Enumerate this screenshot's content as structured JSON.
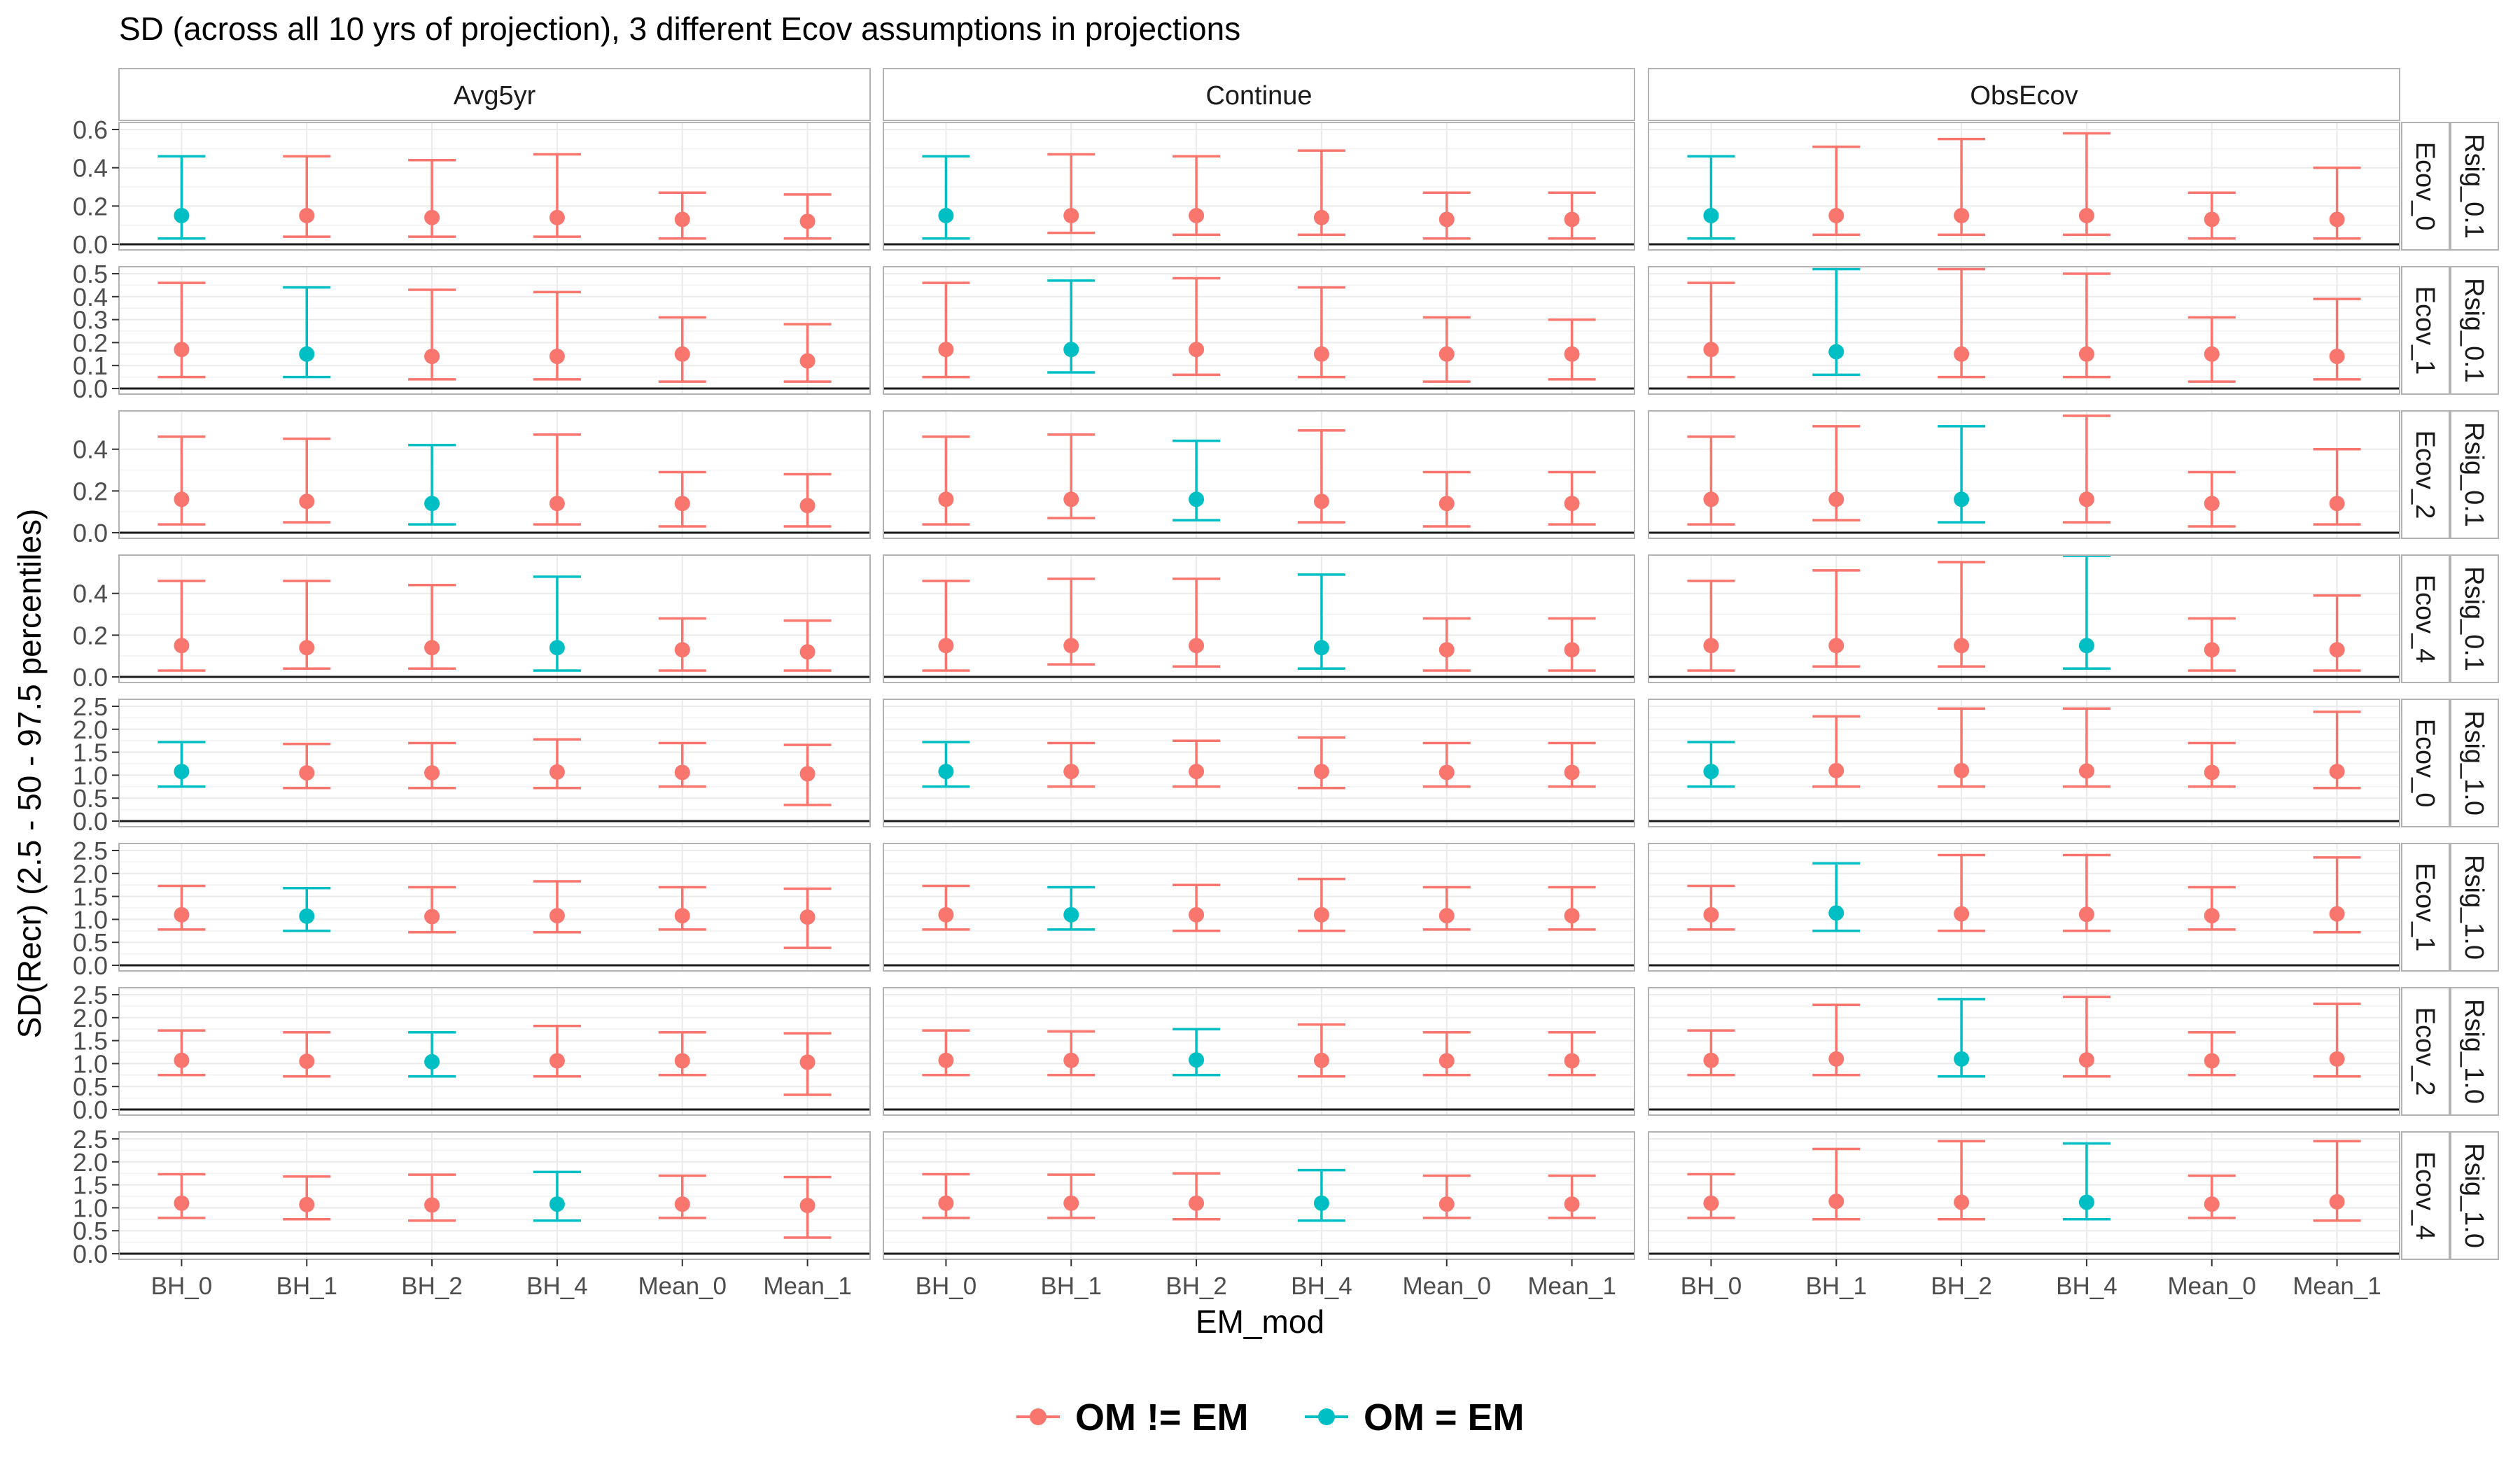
{
  "chart_data": {
    "type": "errorbar-facet",
    "title": "SD (across all 10 yrs of projection), 3 different Ecov assumptions in projections",
    "xlabel": "EM_mod",
    "ylabel": "SD(Recr) (2.5 - 50 - 97.5 percentiles)",
    "categories": [
      "BH_0",
      "BH_1",
      "BH_2",
      "BH_4",
      "Mean_0",
      "Mean_1"
    ],
    "columns": [
      "Avg5yr",
      "Continue",
      "ObsEcov"
    ],
    "legend": {
      "position": "bottom",
      "items": [
        {
          "label": "OM != EM",
          "color": "#F8766D"
        },
        {
          "label": "OM = EM",
          "color": "#00BFC4"
        }
      ]
    },
    "rows": [
      {
        "ecov": "Ecov_0",
        "rsig": "Rsig_0.1",
        "ylim": [
          0,
          0.6
        ],
        "ticks": [
          "0.0",
          "0.2",
          "0.4",
          "0.6"
        ],
        "tick_values": [
          0,
          0.2,
          0.4,
          0.6
        ],
        "match": 0,
        "panels": [
          {
            "lo": [
              0.03,
              0.04,
              0.04,
              0.04,
              0.03,
              0.03
            ],
            "mid": [
              0.15,
              0.15,
              0.14,
              0.14,
              0.13,
              0.12
            ],
            "hi": [
              0.46,
              0.46,
              0.44,
              0.47,
              0.27,
              0.26
            ]
          },
          {
            "lo": [
              0.03,
              0.06,
              0.05,
              0.05,
              0.03,
              0.03
            ],
            "mid": [
              0.15,
              0.15,
              0.15,
              0.14,
              0.13,
              0.13
            ],
            "hi": [
              0.46,
              0.47,
              0.46,
              0.49,
              0.27,
              0.27
            ]
          },
          {
            "lo": [
              0.03,
              0.05,
              0.05,
              0.05,
              0.03,
              0.03
            ],
            "mid": [
              0.15,
              0.15,
              0.15,
              0.15,
              0.13,
              0.13
            ],
            "hi": [
              0.46,
              0.51,
              0.55,
              0.58,
              0.27,
              0.4
            ]
          }
        ]
      },
      {
        "ecov": "Ecov_1",
        "rsig": "Rsig_0.1",
        "ylim": [
          0,
          0.5
        ],
        "ticks": [
          "0.0",
          "0.1",
          "0.2",
          "0.3",
          "0.4",
          "0.5"
        ],
        "tick_values": [
          0,
          0.1,
          0.2,
          0.3,
          0.4,
          0.5
        ],
        "match": 1,
        "panels": [
          {
            "lo": [
              0.05,
              0.05,
              0.04,
              0.04,
              0.03,
              0.03
            ],
            "mid": [
              0.17,
              0.15,
              0.14,
              0.14,
              0.15,
              0.12
            ],
            "hi": [
              0.46,
              0.44,
              0.43,
              0.42,
              0.31,
              0.28
            ]
          },
          {
            "lo": [
              0.05,
              0.07,
              0.06,
              0.05,
              0.03,
              0.04
            ],
            "mid": [
              0.17,
              0.17,
              0.17,
              0.15,
              0.15,
              0.15
            ],
            "hi": [
              0.46,
              0.47,
              0.48,
              0.44,
              0.31,
              0.3
            ]
          },
          {
            "lo": [
              0.05,
              0.06,
              0.05,
              0.05,
              0.03,
              0.04
            ],
            "mid": [
              0.17,
              0.16,
              0.15,
              0.15,
              0.15,
              0.14
            ],
            "hi": [
              0.46,
              0.52,
              0.52,
              0.5,
              0.31,
              0.39
            ]
          }
        ]
      },
      {
        "ecov": "Ecov_2",
        "rsig": "Rsig_0.1",
        "ylim": [
          0,
          0.55
        ],
        "ticks": [
          "0.0",
          "0.2",
          "0.4"
        ],
        "tick_values": [
          0,
          0.2,
          0.4
        ],
        "match": 2,
        "panels": [
          {
            "lo": [
              0.04,
              0.05,
              0.04,
              0.04,
              0.03,
              0.03
            ],
            "mid": [
              0.16,
              0.15,
              0.14,
              0.14,
              0.14,
              0.13
            ],
            "hi": [
              0.46,
              0.45,
              0.42,
              0.47,
              0.29,
              0.28
            ]
          },
          {
            "lo": [
              0.04,
              0.07,
              0.06,
              0.05,
              0.03,
              0.04
            ],
            "mid": [
              0.16,
              0.16,
              0.16,
              0.15,
              0.14,
              0.14
            ],
            "hi": [
              0.46,
              0.47,
              0.44,
              0.49,
              0.29,
              0.29
            ]
          },
          {
            "lo": [
              0.04,
              0.06,
              0.05,
              0.05,
              0.03,
              0.04
            ],
            "mid": [
              0.16,
              0.16,
              0.16,
              0.16,
              0.14,
              0.14
            ],
            "hi": [
              0.46,
              0.51,
              0.51,
              0.56,
              0.29,
              0.4
            ]
          }
        ]
      },
      {
        "ecov": "Ecov_4",
        "rsig": "Rsig_0.1",
        "ylim": [
          0,
          0.55
        ],
        "ticks": [
          "0.0",
          "0.2",
          "0.4"
        ],
        "tick_values": [
          0,
          0.2,
          0.4
        ],
        "match": 3,
        "panels": [
          {
            "lo": [
              0.03,
              0.04,
              0.04,
              0.03,
              0.03,
              0.03
            ],
            "mid": [
              0.15,
              0.14,
              0.14,
              0.14,
              0.13,
              0.12
            ],
            "hi": [
              0.46,
              0.46,
              0.44,
              0.48,
              0.28,
              0.27
            ]
          },
          {
            "lo": [
              0.03,
              0.06,
              0.05,
              0.04,
              0.03,
              0.03
            ],
            "mid": [
              0.15,
              0.15,
              0.15,
              0.14,
              0.13,
              0.13
            ],
            "hi": [
              0.46,
              0.47,
              0.47,
              0.49,
              0.28,
              0.28
            ]
          },
          {
            "lo": [
              0.03,
              0.05,
              0.05,
              0.04,
              0.03,
              0.03
            ],
            "mid": [
              0.15,
              0.15,
              0.15,
              0.15,
              0.13,
              0.13
            ],
            "hi": [
              0.46,
              0.51,
              0.55,
              0.58,
              0.28,
              0.39
            ]
          }
        ]
      },
      {
        "ecov": "Ecov_0",
        "rsig": "Rsig_1.0",
        "ylim": [
          0,
          2.5
        ],
        "ticks": [
          "0.0",
          "0.5",
          "1.0",
          "1.5",
          "2.0",
          "2.5"
        ],
        "tick_values": [
          0,
          0.5,
          1.0,
          1.5,
          2.0,
          2.5
        ],
        "match": 0,
        "panels": [
          {
            "lo": [
              0.75,
              0.72,
              0.72,
              0.72,
              0.75,
              0.35
            ],
            "mid": [
              1.08,
              1.05,
              1.05,
              1.07,
              1.06,
              1.03
            ],
            "hi": [
              1.72,
              1.68,
              1.7,
              1.78,
              1.7,
              1.66
            ]
          },
          {
            "lo": [
              0.75,
              0.75,
              0.75,
              0.72,
              0.75,
              0.75
            ],
            "mid": [
              1.08,
              1.08,
              1.08,
              1.08,
              1.06,
              1.06
            ],
            "hi": [
              1.72,
              1.7,
              1.75,
              1.82,
              1.7,
              1.7
            ]
          },
          {
            "lo": [
              0.75,
              0.75,
              0.75,
              0.75,
              0.75,
              0.72
            ],
            "mid": [
              1.08,
              1.1,
              1.1,
              1.09,
              1.06,
              1.08
            ],
            "hi": [
              1.72,
              2.28,
              2.45,
              2.45,
              1.7,
              2.38
            ]
          }
        ]
      },
      {
        "ecov": "Ecov_1",
        "rsig": "Rsig_1.0",
        "ylim": [
          0,
          2.5
        ],
        "ticks": [
          "0.0",
          "0.5",
          "1.0",
          "1.5",
          "2.0",
          "2.5"
        ],
        "tick_values": [
          0,
          0.5,
          1.0,
          1.5,
          2.0,
          2.5
        ],
        "match": 1,
        "panels": [
          {
            "lo": [
              0.78,
              0.75,
              0.72,
              0.72,
              0.78,
              0.38
            ],
            "mid": [
              1.1,
              1.07,
              1.06,
              1.08,
              1.08,
              1.05
            ],
            "hi": [
              1.73,
              1.68,
              1.7,
              1.83,
              1.7,
              1.67
            ]
          },
          {
            "lo": [
              0.78,
              0.78,
              0.75,
              0.75,
              0.78,
              0.78
            ],
            "mid": [
              1.1,
              1.1,
              1.1,
              1.1,
              1.08,
              1.08
            ],
            "hi": [
              1.73,
              1.7,
              1.75,
              1.88,
              1.7,
              1.7
            ]
          },
          {
            "lo": [
              0.78,
              0.75,
              0.75,
              0.75,
              0.78,
              0.72
            ],
            "mid": [
              1.1,
              1.14,
              1.12,
              1.11,
              1.08,
              1.12
            ],
            "hi": [
              1.73,
              2.22,
              2.4,
              2.4,
              1.7,
              2.35
            ]
          }
        ]
      },
      {
        "ecov": "Ecov_2",
        "rsig": "Rsig_1.0",
        "ylim": [
          0,
          2.5
        ],
        "ticks": [
          "0.0",
          "0.5",
          "1.0",
          "1.5",
          "2.0",
          "2.5"
        ],
        "tick_values": [
          0,
          0.5,
          1.0,
          1.5,
          2.0,
          2.5
        ],
        "match": 2,
        "panels": [
          {
            "lo": [
              0.75,
              0.72,
              0.72,
              0.72,
              0.75,
              0.32
            ],
            "mid": [
              1.07,
              1.05,
              1.04,
              1.06,
              1.06,
              1.03
            ],
            "hi": [
              1.72,
              1.68,
              1.68,
              1.82,
              1.68,
              1.66
            ]
          },
          {
            "lo": [
              0.75,
              0.75,
              0.75,
              0.72,
              0.75,
              0.75
            ],
            "mid": [
              1.07,
              1.07,
              1.08,
              1.07,
              1.06,
              1.06
            ],
            "hi": [
              1.72,
              1.7,
              1.75,
              1.85,
              1.68,
              1.68
            ]
          },
          {
            "lo": [
              0.75,
              0.75,
              0.72,
              0.72,
              0.75,
              0.72
            ],
            "mid": [
              1.07,
              1.1,
              1.1,
              1.08,
              1.06,
              1.1
            ],
            "hi": [
              1.72,
              2.28,
              2.4,
              2.45,
              1.68,
              2.3
            ]
          }
        ]
      },
      {
        "ecov": "Ecov_4",
        "rsig": "Rsig_1.0",
        "ylim": [
          0,
          2.5
        ],
        "ticks": [
          "0.0",
          "0.5",
          "1.0",
          "1.5",
          "2.0",
          "2.5"
        ],
        "tick_values": [
          0,
          0.5,
          1.0,
          1.5,
          2.0,
          2.5
        ],
        "match": 3,
        "panels": [
          {
            "lo": [
              0.78,
              0.75,
              0.72,
              0.72,
              0.78,
              0.35
            ],
            "mid": [
              1.1,
              1.07,
              1.06,
              1.08,
              1.08,
              1.05
            ],
            "hi": [
              1.73,
              1.68,
              1.72,
              1.78,
              1.7,
              1.67
            ]
          },
          {
            "lo": [
              0.78,
              0.78,
              0.75,
              0.72,
              0.78,
              0.78
            ],
            "mid": [
              1.1,
              1.1,
              1.1,
              1.1,
              1.08,
              1.08
            ],
            "hi": [
              1.73,
              1.72,
              1.75,
              1.82,
              1.7,
              1.7
            ]
          },
          {
            "lo": [
              0.78,
              0.75,
              0.75,
              0.75,
              0.78,
              0.72
            ],
            "mid": [
              1.1,
              1.14,
              1.12,
              1.12,
              1.08,
              1.13
            ],
            "hi": [
              1.73,
              2.28,
              2.45,
              2.4,
              1.7,
              2.45
            ]
          }
        ]
      }
    ]
  }
}
